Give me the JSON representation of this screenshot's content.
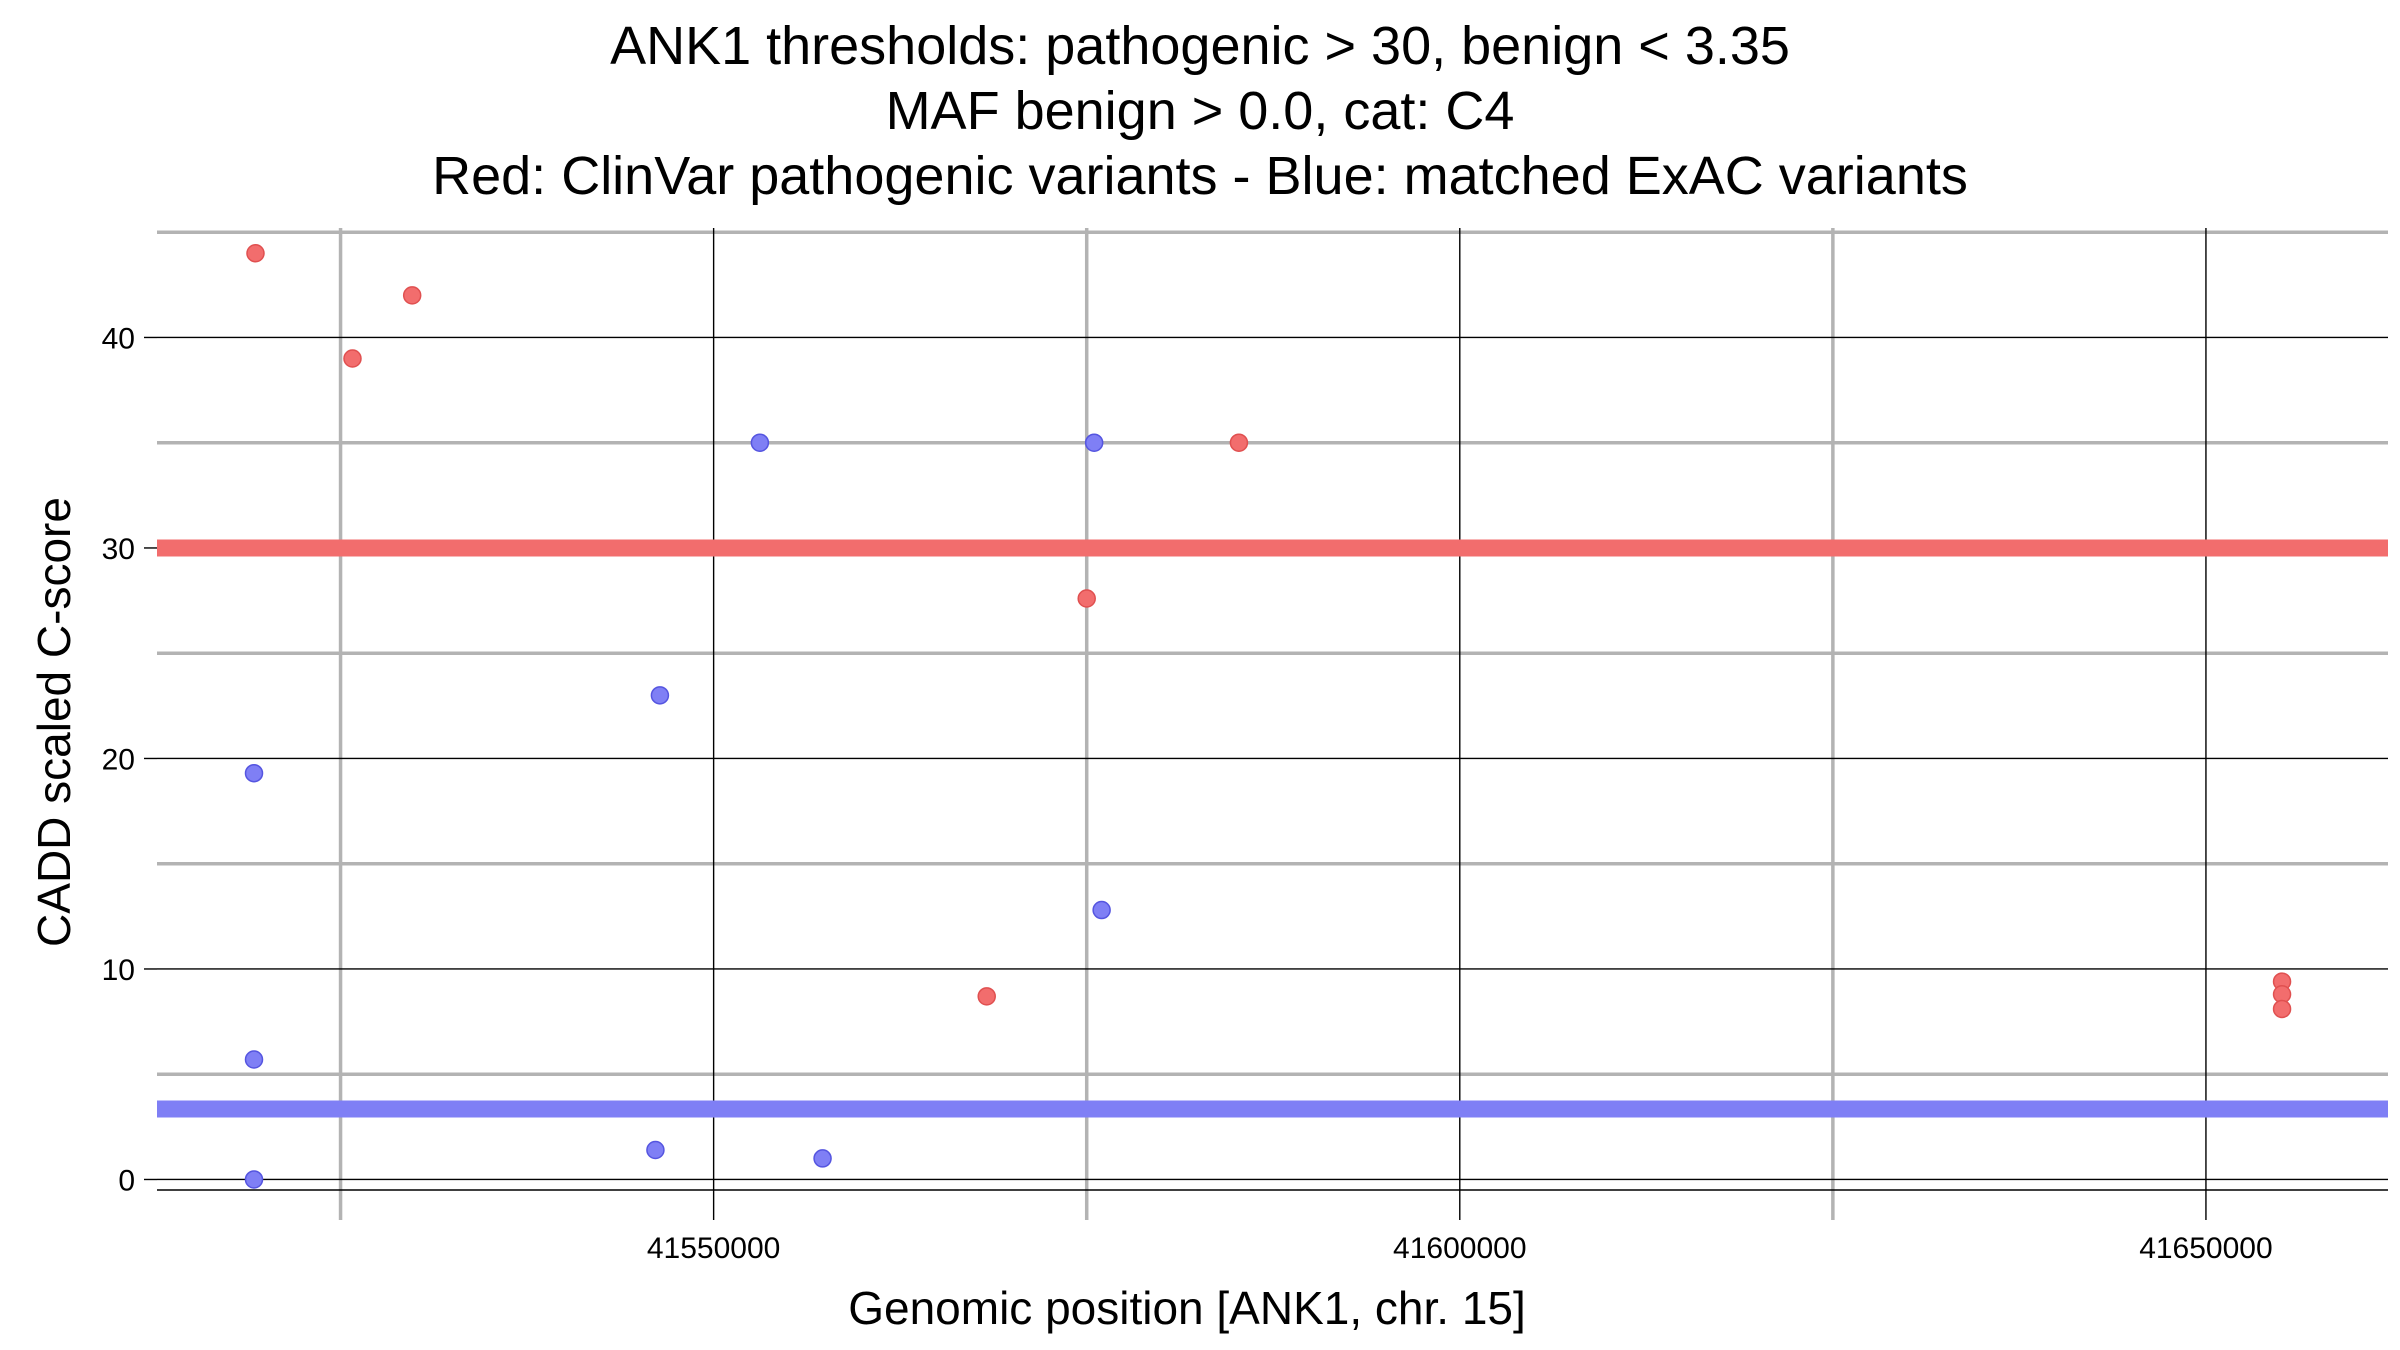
{
  "chart_data": {
    "type": "scatter",
    "title_lines": [
      "ANK1 thresholds: pathogenic > 30, benign < 3.35",
      "MAF benign > 0.0, cat: C4",
      "Red: ClinVar pathogenic variants - Blue: matched ExAC variants"
    ],
    "xlabel": "Genomic position [ANK1, chr. 15]",
    "ylabel": "CADD scaled C-score",
    "xlim": [
      41512700,
      41662200
    ],
    "ylim": [
      -0.5,
      45.2
    ],
    "x_major_ticks": [
      41550000,
      41600000,
      41650000
    ],
    "x_tick_labels": [
      "41550000",
      "41600000",
      "41650000"
    ],
    "x_minor_ticks": [
      41525000,
      41575000,
      41625000
    ],
    "y_major_ticks": [
      0,
      10,
      20,
      30,
      40
    ],
    "y_tick_labels": [
      "0",
      "10",
      "20",
      "30",
      "40"
    ],
    "y_minor_ticks": [
      5,
      15,
      25,
      35,
      45
    ],
    "thresholds": [
      {
        "name": "pathogenic",
        "value": 30,
        "color": "#f26d6d"
      },
      {
        "name": "benign",
        "value": 3.35,
        "color": "#7f7ff5"
      }
    ],
    "series": [
      {
        "name": "ClinVar pathogenic variants",
        "color": "#f26d6d",
        "stroke": "#e05050",
        "points": [
          {
            "x": 41519300,
            "y": 44
          },
          {
            "x": 41525800,
            "y": 39
          },
          {
            "x": 41529800,
            "y": 42
          },
          {
            "x": 41585200,
            "y": 35
          },
          {
            "x": 41575000,
            "y": 27.6
          },
          {
            "x": 41568300,
            "y": 8.7
          },
          {
            "x": 41655100,
            "y": 9.4
          },
          {
            "x": 41655100,
            "y": 8.8
          },
          {
            "x": 41655100,
            "y": 8.1
          }
        ]
      },
      {
        "name": "matched ExAC variants",
        "color": "#7f7ff5",
        "stroke": "#5555e0",
        "points": [
          {
            "x": 41519200,
            "y": 19.3
          },
          {
            "x": 41519200,
            "y": 5.7
          },
          {
            "x": 41519200,
            "y": 0
          },
          {
            "x": 41546400,
            "y": 23
          },
          {
            "x": 41553100,
            "y": 35
          },
          {
            "x": 41575500,
            "y": 35
          },
          {
            "x": 41576000,
            "y": 12.8
          },
          {
            "x": 41546100,
            "y": 1.4
          },
          {
            "x": 41557300,
            "y": 1.0
          }
        ]
      }
    ]
  }
}
